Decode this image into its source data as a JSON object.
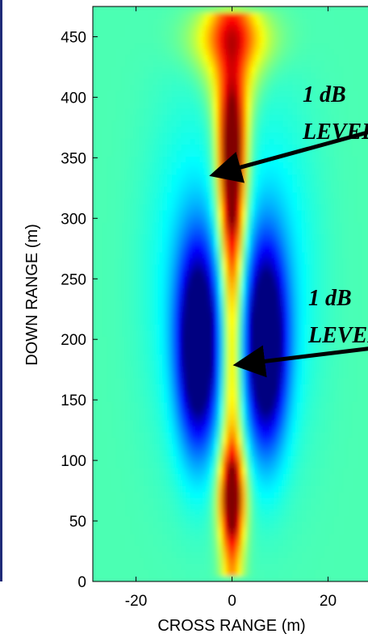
{
  "chart_data": {
    "type": "heatmap",
    "title": "",
    "xlabel": "CROSS RANGE (m)",
    "ylabel": "DOWN RANGE (m)",
    "xlim": [
      -29,
      29
    ],
    "ylim": [
      0,
      475
    ],
    "x_ticks": [
      -20,
      0,
      20
    ],
    "y_ticks": [
      0,
      50,
      100,
      150,
      200,
      250,
      300,
      350,
      400,
      450
    ],
    "colormap": "jet",
    "grid": false,
    "annotations": [
      {
        "lines": [
          "1 dB",
          "LEVEL"
        ],
        "arrow_tip": {
          "x": -2,
          "y": 338
        }
      },
      {
        "lines": [
          "1 dB",
          "LEVEL"
        ],
        "arrow_tip": {
          "x": 3,
          "y": 180
        }
      }
    ]
  }
}
